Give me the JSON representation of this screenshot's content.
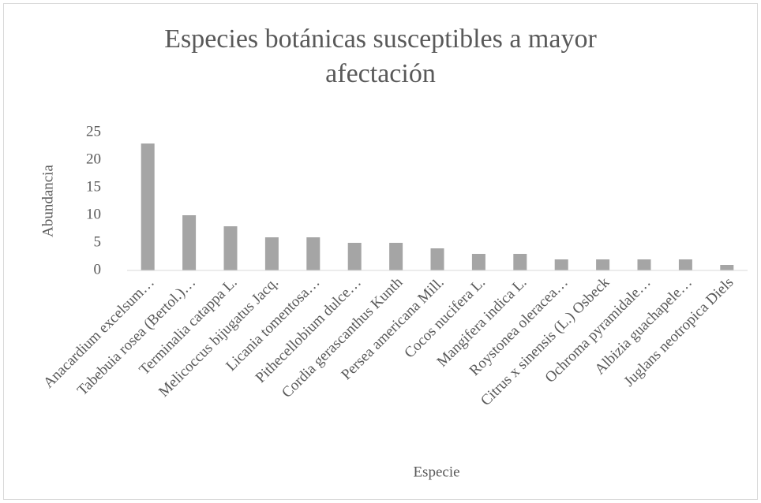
{
  "chart_data": {
    "type": "bar",
    "title": "Especies botánicas susceptibles a mayor afectación",
    "x_label": "Especie",
    "y_label": "Abundancia",
    "categories": [
      "Anacardium excelsum…",
      "Tabebuia rosea (Bertol.)…",
      "Terminalia catappa L.",
      "Melicoccus bijugatus Jacq.",
      "Licania tomentosa…",
      "Pithecellobium dulce…",
      "Cordia gerascanthus Kunth",
      "Persea americana Mill.",
      "Cocos nucifera L.",
      "Mangifera indica L.",
      "Roystonea oleracea…",
      "Citrus x sinensis (L.) Osbeck",
      "Ochroma pyramidale…",
      "Albizia guachapele…",
      "Juglans neotropica Diels"
    ],
    "values": [
      23,
      10,
      8,
      6,
      6,
      5,
      5,
      4,
      3,
      3,
      2,
      2,
      2,
      2,
      1
    ],
    "color": "#a5a5a5",
    "ylim": [
      0,
      25
    ],
    "yticks": [
      0,
      5,
      10,
      15,
      20,
      25
    ],
    "grid": false
  }
}
